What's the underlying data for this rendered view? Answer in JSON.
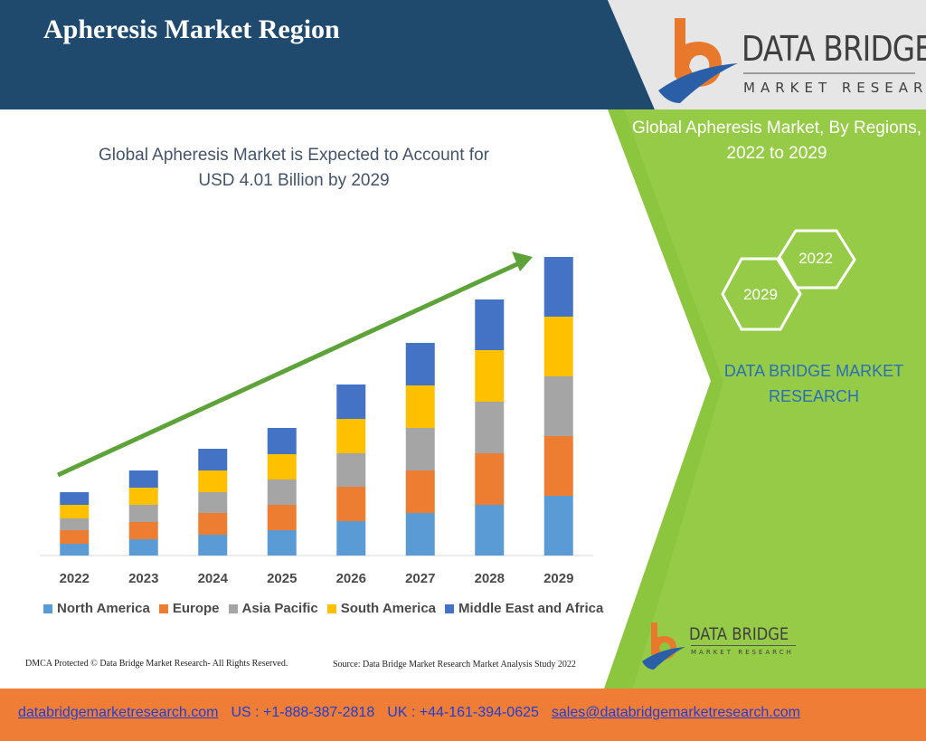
{
  "header": {
    "title": "Apheresis Market Region",
    "brand_name": "DATA BRIDGE",
    "brand_sub": "MARKET RESEARCH"
  },
  "side_panel": {
    "subtitle_line1": "Global Apheresis Market, By Regions,",
    "subtitle_line2": "2022 to 2029",
    "hex_year_top": "2022",
    "hex_year_bottom": "2029",
    "brand_line1": "DATA BRIDGE MARKET",
    "brand_line2": "RESEARCH",
    "logo_brand_name": "DATA BRIDGE",
    "logo_brand_sub": "MARKET RESEARCH"
  },
  "chart_data": {
    "type": "bar",
    "stacked": true,
    "title_line1": "Global Apheresis Market is Expected to Account for",
    "title_line2": "USD 4.01 Billion by 2029",
    "categories": [
      "2022",
      "2023",
      "2024",
      "2025",
      "2026",
      "2027",
      "2028",
      "2029"
    ],
    "series": [
      {
        "name": "North America",
        "color": "#5b9bd5",
        "values": [
          13,
          18,
          23,
          28,
          38,
          47,
          56,
          66
        ]
      },
      {
        "name": "Europe",
        "color": "#ed7d31",
        "values": [
          15,
          19,
          24,
          28,
          38,
          47,
          57,
          66
        ]
      },
      {
        "name": "Asia Pacific",
        "color": "#a5a5a5",
        "values": [
          13,
          19,
          23,
          28,
          37,
          47,
          57,
          66
        ]
      },
      {
        "name": "South America",
        "color": "#ffc000",
        "values": [
          15,
          19,
          24,
          28,
          38,
          47,
          57,
          66
        ]
      },
      {
        "name": "Middle East and Africa",
        "color": "#4472c4",
        "values": [
          14,
          19,
          24,
          29,
          38,
          47,
          56,
          66
        ]
      }
    ],
    "trend_arrow_color": "#5ea33a",
    "legend_position": "bottom",
    "grid": false
  },
  "footer": {
    "copyright": "DMCA Protected © Data Bridge Market Research- All Rights Reserved.",
    "source": "Source: Data Bridge Market Research Market Analysis Study 2022",
    "website": "databridgemarketresearch.com",
    "us_phone": "US : +1-888-387-2818",
    "uk_phone": "UK : +44-161-394-0625",
    "email": "sales@databridgemarketresearch.com"
  },
  "colors": {
    "header_navy": "#1f4a6e",
    "panel_green": "#8cc63f",
    "footer_orange": "#ef7d35",
    "brand_orange": "#e8792c",
    "brand_blue": "#2a5fa8"
  }
}
